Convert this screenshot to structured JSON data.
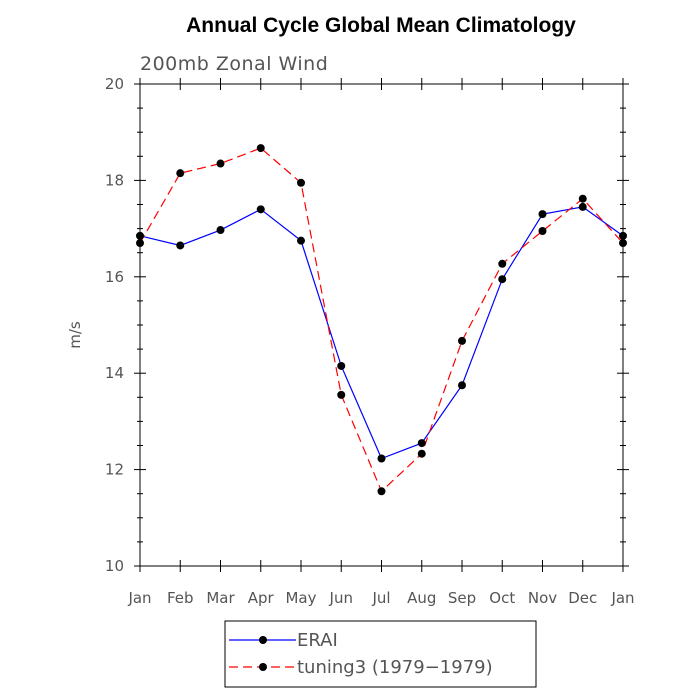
{
  "chart_data": {
    "type": "line",
    "title": "Annual Cycle Global Mean Climatology",
    "subtitle": "200mb Zonal Wind",
    "xlabel": "",
    "ylabel": "m/s",
    "categories": [
      "Jan",
      "Feb",
      "Mar",
      "Apr",
      "May",
      "Jun",
      "Jul",
      "Aug",
      "Sep",
      "Oct",
      "Nov",
      "Dec",
      "Jan"
    ],
    "ylim": [
      10,
      20
    ],
    "yticks": [
      "10",
      "12",
      "14",
      "16",
      "18",
      "20"
    ],
    "grid": false,
    "legend_position": "bottom",
    "series": [
      {
        "name": "ERAI",
        "color": "#0000ff",
        "style": "solid",
        "values": [
          16.85,
          16.65,
          16.97,
          17.4,
          16.75,
          14.15,
          12.23,
          12.55,
          13.75,
          15.95,
          17.3,
          17.45,
          16.85
        ]
      },
      {
        "name": "tuning3 (1979−1979)",
        "color": "#ff0000",
        "style": "dashed",
        "values": [
          16.7,
          18.15,
          18.35,
          18.67,
          17.95,
          13.55,
          11.55,
          12.33,
          14.67,
          16.27,
          16.95,
          17.62,
          16.7
        ]
      }
    ]
  }
}
